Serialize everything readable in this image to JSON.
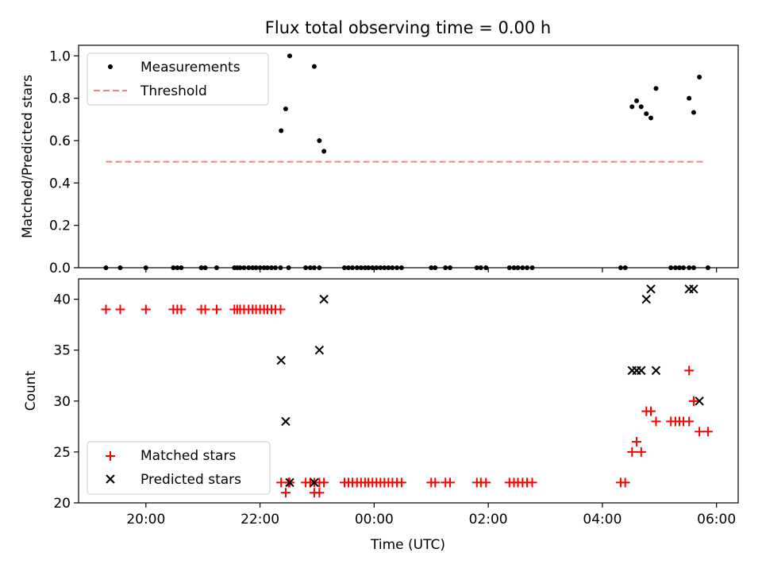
{
  "chart_data": [
    {
      "type": "scatter",
      "title": "Flux total observing time = 0.00 h",
      "xlabel": "",
      "ylabel": "Matched/Predicted stars",
      "ylim": [
        0,
        1.05
      ],
      "yticks": [
        0.0,
        0.2,
        0.4,
        0.6,
        0.8,
        1.0
      ],
      "ytick_labels": [
        "0.0",
        "0.2",
        "0.4",
        "0.6",
        "0.8",
        "1.0"
      ],
      "xlim_hours": [
        18.82,
        30.38
      ],
      "legend": {
        "placement": "upper-left",
        "entries": [
          "Measurements",
          "Threshold"
        ]
      },
      "colors": {
        "measurements": "#000000",
        "threshold": "#ff8080"
      },
      "threshold": {
        "value": 0.5,
        "x_range_hours": [
          19.3,
          29.8
        ]
      },
      "series": [
        {
          "name": "Measurements",
          "x_hours": [
            19.3,
            19.55,
            20.0,
            20.48,
            20.55,
            20.62,
            20.97,
            21.04,
            21.24,
            21.55,
            21.6,
            21.65,
            21.72,
            21.8,
            21.87,
            21.93,
            22.0,
            22.07,
            22.13,
            22.2,
            22.27,
            22.36,
            22.5,
            22.8,
            22.88,
            22.95,
            23.04,
            23.48,
            23.55,
            23.62,
            23.7,
            23.77,
            23.84,
            23.9,
            23.97,
            24.04,
            24.11,
            24.18,
            24.25,
            24.32,
            24.4,
            24.48,
            25.0,
            25.07,
            25.25,
            25.33,
            25.8,
            25.87,
            25.96,
            26.37,
            26.45,
            26.52,
            26.6,
            26.68,
            26.77,
            28.32,
            28.4,
            29.2,
            29.28,
            29.35,
            29.42,
            29.52,
            29.6,
            29.85,
            22.37,
            22.45,
            22.52,
            22.95,
            23.04,
            23.12,
            28.52,
            28.6,
            28.68,
            28.77,
            28.85,
            28.94,
            29.52,
            29.6,
            29.7
          ],
          "y": [
            0,
            0,
            0,
            0,
            0,
            0,
            0,
            0,
            0,
            0,
            0,
            0,
            0,
            0,
            0,
            0,
            0,
            0,
            0,
            0,
            0,
            0,
            0,
            0,
            0,
            0,
            0,
            0,
            0,
            0,
            0,
            0,
            0,
            0,
            0,
            0,
            0,
            0,
            0,
            0,
            0,
            0,
            0,
            0,
            0,
            0,
            0,
            0,
            0,
            0,
            0,
            0,
            0,
            0,
            0,
            0,
            0,
            0,
            0,
            0,
            0,
            0,
            0,
            0,
            0.647,
            0.75,
            1.0,
            0.95,
            0.6,
            0.55,
            0.76,
            0.788,
            0.76,
            0.727,
            0.707,
            0.846,
            0.8,
            0.733,
            0.9
          ]
        }
      ]
    },
    {
      "type": "scatter",
      "title": "",
      "xlabel": "Time (UTC)",
      "ylabel": "Count",
      "ylim": [
        20,
        42
      ],
      "yticks": [
        20,
        25,
        30,
        35,
        40
      ],
      "ytick_labels": [
        "20",
        "25",
        "30",
        "35",
        "40"
      ],
      "xlim_hours": [
        18.82,
        30.38
      ],
      "xticks_hours": [
        20,
        22,
        24,
        26,
        28,
        30
      ],
      "xtick_labels": [
        "20:00",
        "22:00",
        "00:00",
        "02:00",
        "04:00",
        "06:00"
      ],
      "legend": {
        "placement": "lower-left",
        "entries": [
          "Matched stars",
          "Predicted stars"
        ]
      },
      "colors": {
        "matched": "#ff0000",
        "predicted": "#000000"
      },
      "series": [
        {
          "name": "Matched stars",
          "x_hours": [
            19.3,
            19.55,
            20.0,
            20.48,
            20.55,
            20.62,
            20.97,
            21.04,
            21.24,
            21.55,
            21.6,
            21.65,
            21.72,
            21.8,
            21.87,
            21.93,
            22.0,
            22.07,
            22.13,
            22.2,
            22.27,
            22.36,
            22.5,
            22.8,
            22.88,
            22.95,
            23.04,
            23.48,
            23.55,
            23.62,
            23.7,
            23.77,
            23.84,
            23.9,
            23.97,
            24.04,
            24.11,
            24.18,
            24.25,
            24.32,
            24.4,
            24.48,
            25.0,
            25.07,
            25.25,
            25.33,
            25.8,
            25.87,
            25.96,
            26.37,
            26.45,
            26.52,
            26.6,
            26.68,
            26.77,
            28.32,
            28.4,
            29.2,
            29.28,
            29.35,
            29.42,
            29.52,
            29.6,
            29.85,
            22.37,
            22.45,
            22.52,
            22.95,
            23.04,
            23.12,
            28.52,
            28.6,
            28.68,
            28.77,
            28.85,
            28.94,
            29.52,
            29.6,
            29.7
          ],
          "y": [
            39,
            39,
            39,
            39,
            39,
            39,
            39,
            39,
            39,
            39,
            39,
            39,
            39,
            39,
            39,
            39,
            39,
            39,
            39,
            39,
            39,
            39,
            22,
            22,
            22,
            22,
            22,
            22,
            22,
            22,
            22,
            22,
            22,
            22,
            22,
            22,
            22,
            22,
            22,
            22,
            22,
            22,
            22,
            22,
            22,
            22,
            22,
            22,
            22,
            22,
            22,
            22,
            22,
            22,
            22,
            22,
            22,
            28,
            28,
            28,
            28,
            33,
            30,
            27,
            22,
            21,
            22,
            21,
            21,
            22,
            25,
            26,
            25,
            29,
            29,
            28,
            28,
            30,
            27
          ]
        },
        {
          "name": "Predicted stars",
          "x_hours": [
            22.37,
            22.45,
            22.52,
            22.95,
            23.04,
            23.12,
            28.52,
            28.6,
            28.68,
            28.77,
            28.85,
            28.94,
            29.52,
            29.6,
            29.7
          ],
          "y": [
            34,
            28,
            22,
            22,
            35,
            40,
            33,
            33,
            33,
            40,
            41,
            33,
            41,
            41,
            30
          ]
        }
      ]
    }
  ]
}
